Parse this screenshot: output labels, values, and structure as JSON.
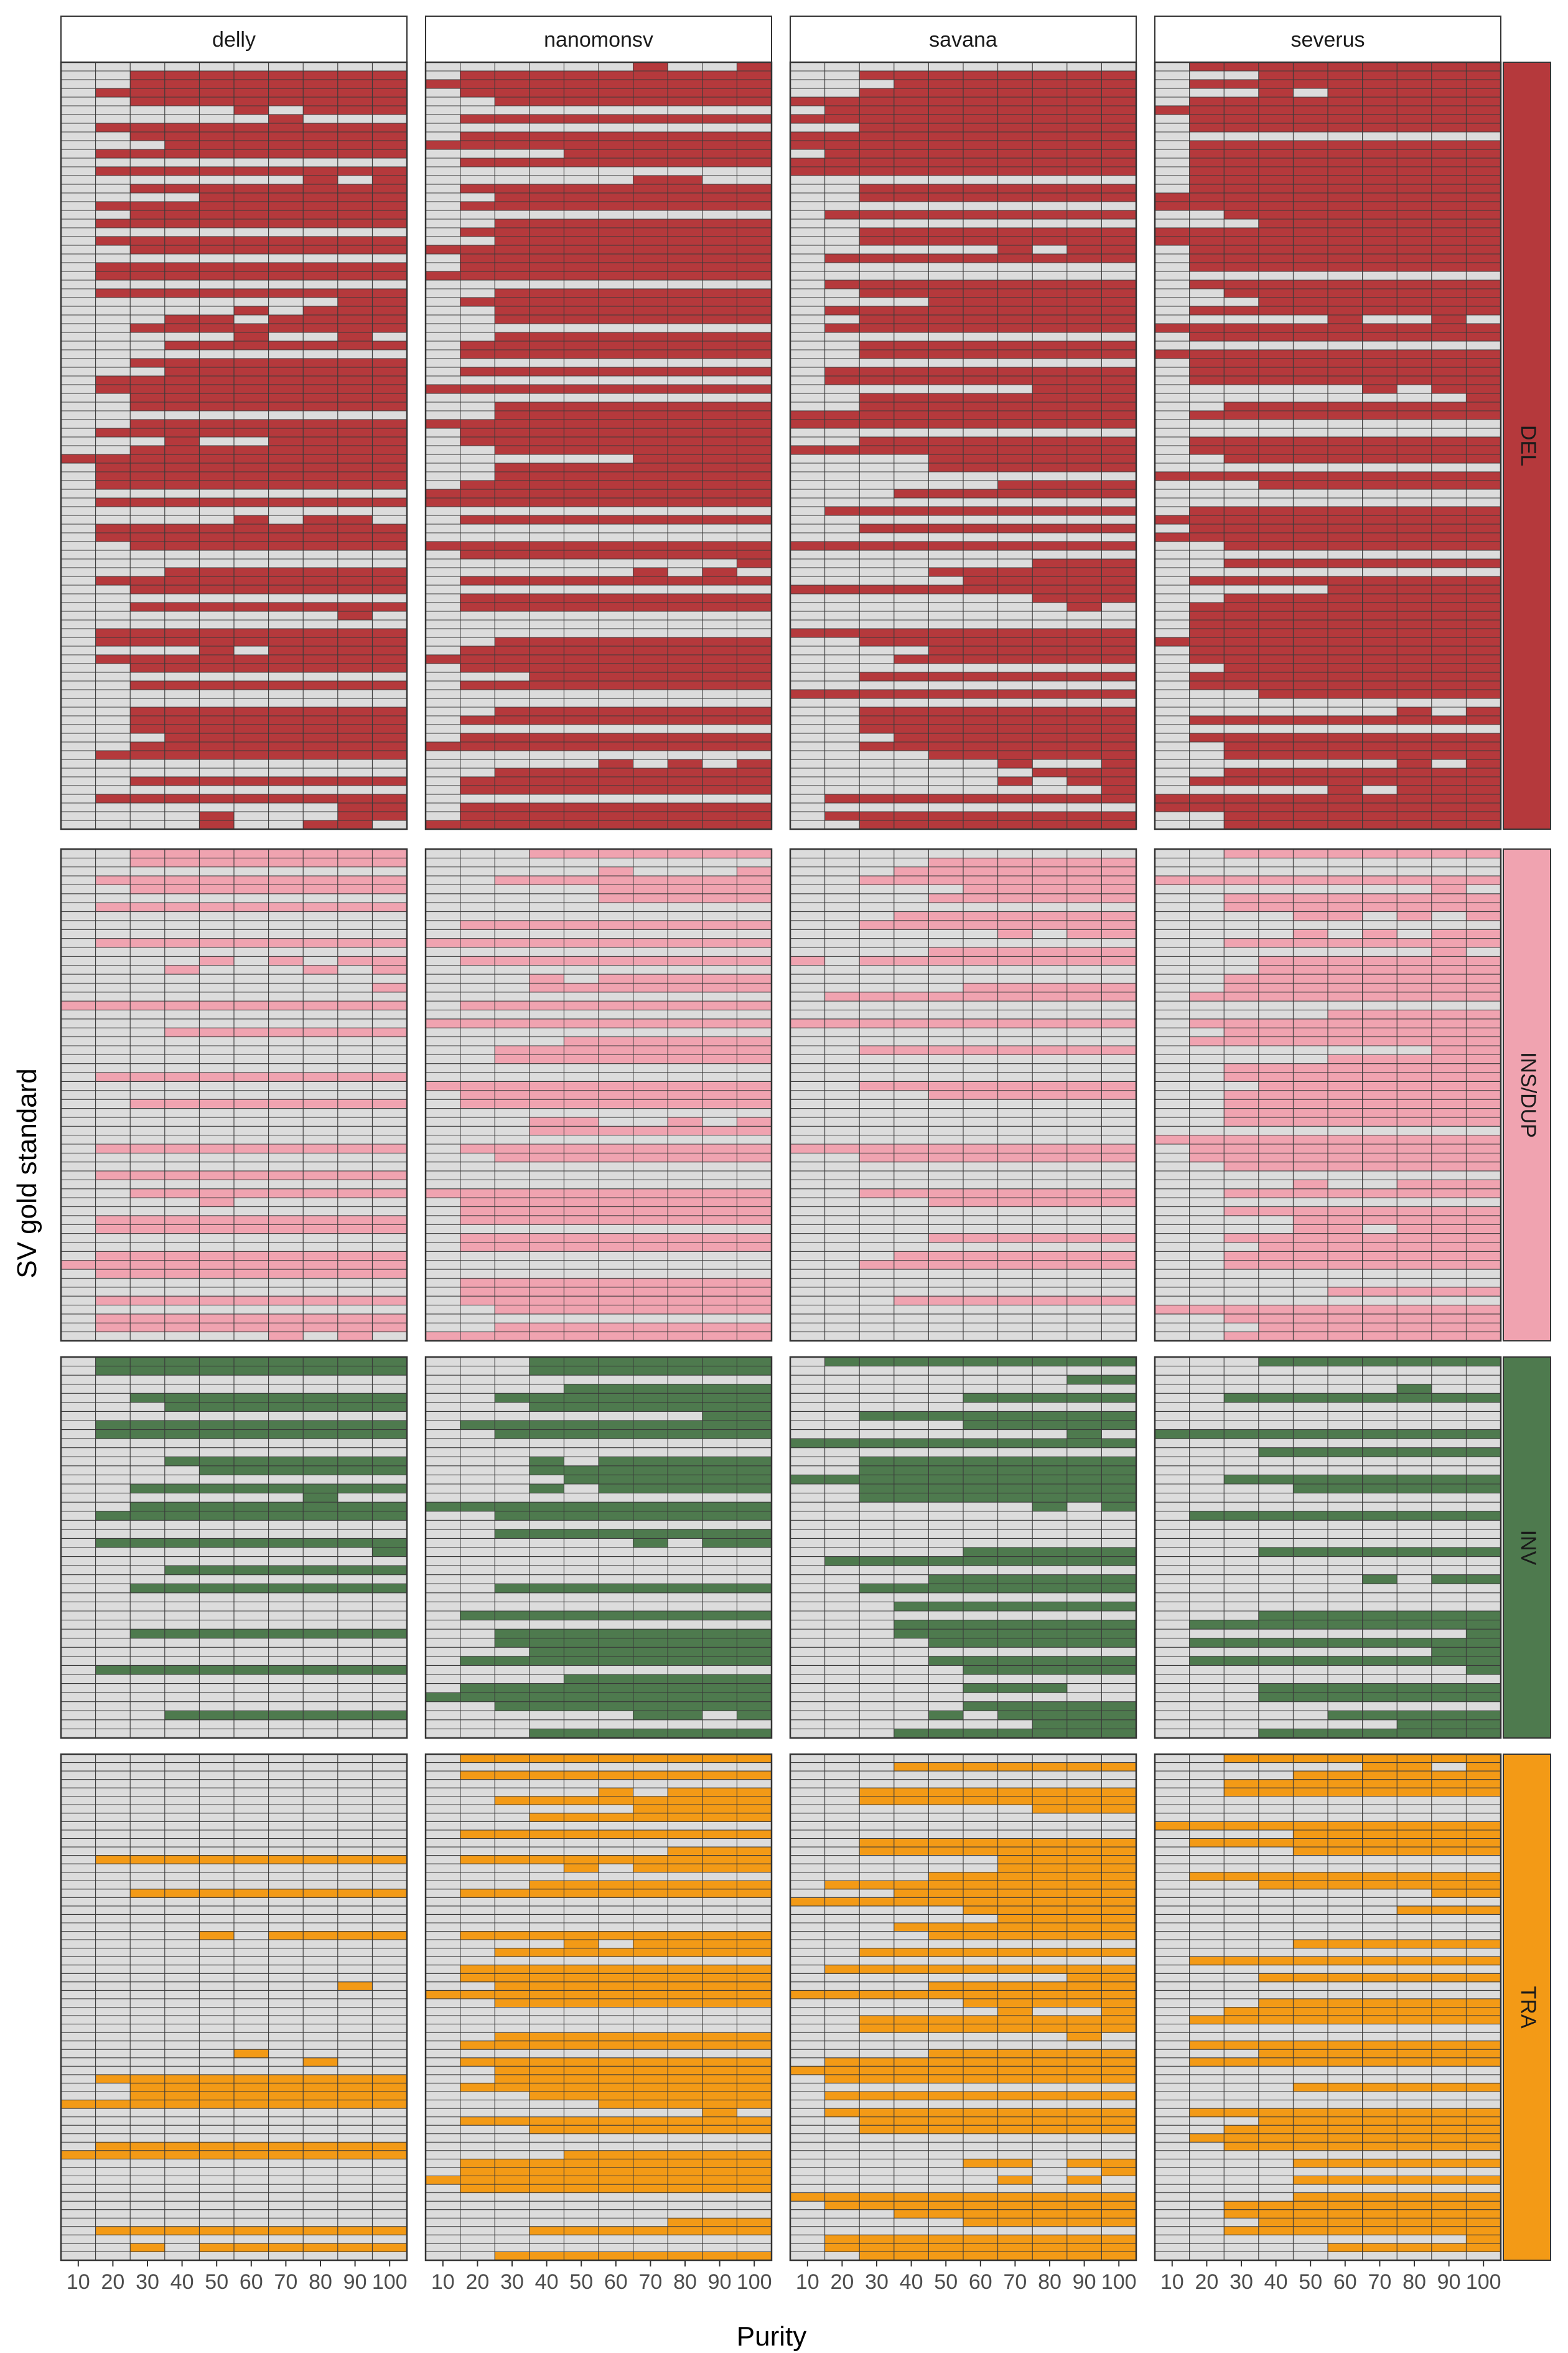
{
  "chart_data": {
    "type": "heatmap",
    "xlabel": "Purity",
    "ylabel": "SV gold standard",
    "x": [
      "10",
      "20",
      "30",
      "40",
      "50",
      "60",
      "70",
      "80",
      "90",
      "100"
    ],
    "callers": [
      "delly",
      "nanomonsv",
      "savana",
      "severus"
    ],
    "sv_types": [
      {
        "name": "DEL",
        "color": "#b5393c",
        "rows": 88
      },
      {
        "name": "INS/DUP",
        "color": "#f0a3b0",
        "rows": 55
      },
      {
        "name": "INV",
        "color": "#4e7a4e",
        "rows": 42
      },
      {
        "name": "TRA",
        "color": "#f39a16",
        "rows": 60
      }
    ],
    "missed_color": "#dcdcdc",
    "values_description": "Each cell = one gold-standard SV at one purity; colored = detected, grey = not detected. Detection rate by purity (fraction of SVs detected).",
    "detection_rate": {
      "delly": {
        "DEL": [
          0.02,
          0.35,
          0.68,
          0.72,
          0.74,
          0.75,
          0.78,
          0.8,
          0.8,
          0.8
        ],
        "INS/DUP": [
          0.02,
          0.4,
          0.55,
          0.57,
          0.58,
          0.58,
          0.59,
          0.6,
          0.6,
          0.6
        ],
        "INV": [
          0.02,
          0.2,
          0.3,
          0.33,
          0.35,
          0.36,
          0.37,
          0.38,
          0.38,
          0.38
        ],
        "TRA": [
          0.02,
          0.1,
          0.2,
          0.22,
          0.24,
          0.25,
          0.26,
          0.26,
          0.27,
          0.27
        ]
      },
      "nanomonsv": {
        "DEL": [
          0.15,
          0.5,
          0.62,
          0.68,
          0.71,
          0.73,
          0.74,
          0.75,
          0.76,
          0.76
        ],
        "INS/DUP": [
          0.02,
          0.3,
          0.45,
          0.52,
          0.56,
          0.58,
          0.59,
          0.6,
          0.6,
          0.6
        ],
        "INV": [
          0.02,
          0.15,
          0.3,
          0.38,
          0.42,
          0.46,
          0.48,
          0.5,
          0.5,
          0.5
        ],
        "TRA": [
          0.02,
          0.25,
          0.42,
          0.5,
          0.55,
          0.58,
          0.6,
          0.61,
          0.62,
          0.62
        ]
      },
      "savana": {
        "DEL": [
          0.12,
          0.3,
          0.55,
          0.65,
          0.7,
          0.74,
          0.76,
          0.78,
          0.79,
          0.8
        ],
        "INS/DUP": [
          0.01,
          0.05,
          0.15,
          0.25,
          0.32,
          0.38,
          0.4,
          0.42,
          0.43,
          0.44
        ],
        "INV": [
          0.02,
          0.12,
          0.25,
          0.35,
          0.42,
          0.48,
          0.52,
          0.55,
          0.56,
          0.57
        ],
        "TRA": [
          0.02,
          0.15,
          0.35,
          0.45,
          0.52,
          0.56,
          0.58,
          0.6,
          0.62,
          0.62
        ]
      },
      "severus": {
        "DEL": [
          0.1,
          0.45,
          0.62,
          0.7,
          0.74,
          0.76,
          0.78,
          0.8,
          0.8,
          0.81
        ],
        "INS/DUP": [
          0.02,
          0.25,
          0.45,
          0.55,
          0.6,
          0.62,
          0.63,
          0.64,
          0.65,
          0.65
        ],
        "INV": [
          0.02,
          0.15,
          0.3,
          0.4,
          0.46,
          0.5,
          0.53,
          0.55,
          0.56,
          0.57
        ],
        "TRA": [
          0.02,
          0.2,
          0.35,
          0.45,
          0.52,
          0.56,
          0.58,
          0.6,
          0.61,
          0.62
        ]
      }
    }
  }
}
